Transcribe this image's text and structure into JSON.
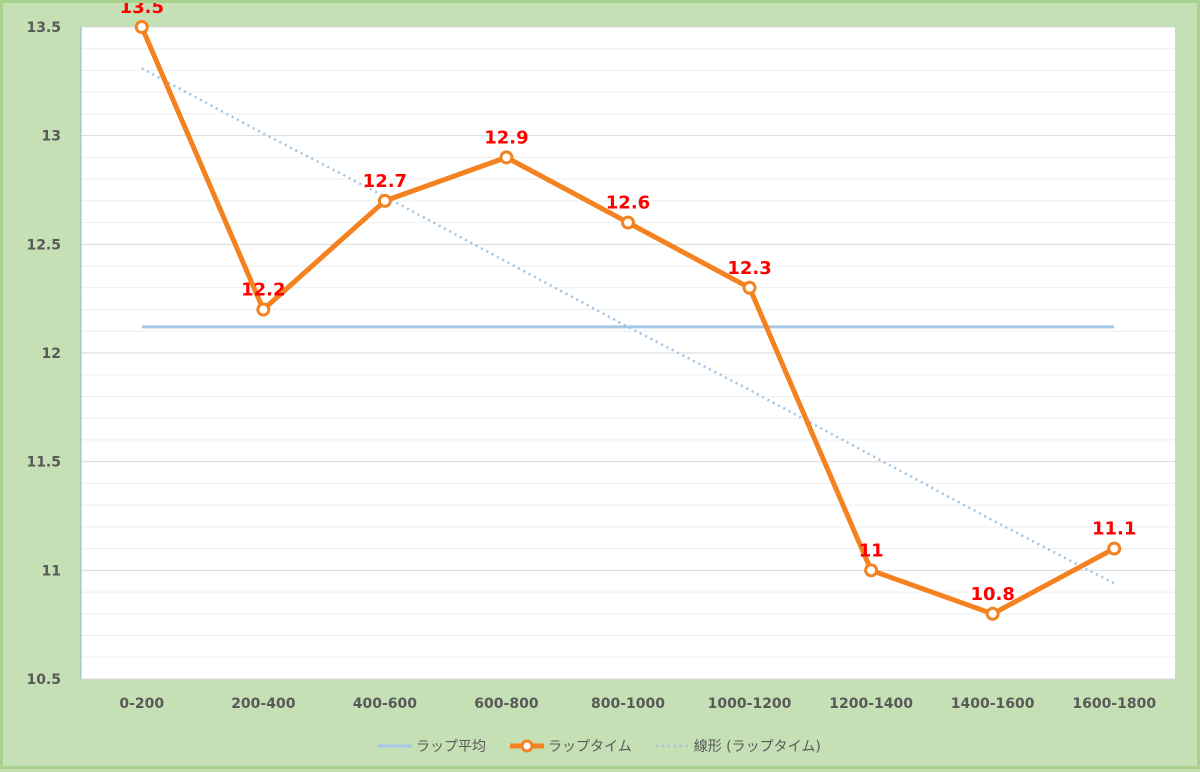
{
  "chart_data": {
    "type": "line",
    "categories": [
      "0-200",
      "200-400",
      "400-600",
      "600-800",
      "800-1000",
      "1000-1200",
      "1200-1400",
      "1400-1600",
      "1600-1800"
    ],
    "series": [
      {
        "name": "ラップタイム",
        "values": [
          13.5,
          12.2,
          12.7,
          12.9,
          12.6,
          12.3,
          11.0,
          10.8,
          11.1
        ],
        "data_labels": [
          "13.5",
          "12.2",
          "12.7",
          "12.9",
          "12.6",
          "12.3",
          "11",
          "10.8",
          "11.1"
        ],
        "color": "#f58220",
        "marker": "circle-hollow"
      },
      {
        "name": "ラップ平均",
        "values": [
          12.12,
          12.12,
          12.12,
          12.12,
          12.12,
          12.12,
          12.12,
          12.12,
          12.12
        ],
        "color": "#a7c7e7"
      },
      {
        "name": "線形 (ラップタイム)",
        "trendline": true,
        "values": [
          13.31,
          13.01,
          12.72,
          12.42,
          12.12,
          11.83,
          11.53,
          11.23,
          10.94
        ],
        "color": "#9dc3e6",
        "style": "dotted"
      }
    ],
    "ylim": [
      10.5,
      13.5
    ],
    "yticks": [
      "10.5",
      "11",
      "11.5",
      "12",
      "12.5",
      "13",
      "13.5"
    ],
    "minor_grid_step": 0.1,
    "grid": true,
    "legend": "bottom",
    "legend_order": [
      "ラップ平均",
      "ラップタイム",
      "線形 (ラップタイム)"
    ],
    "title": "",
    "xlabel": "",
    "ylabel": ""
  },
  "colors": {
    "background": "#c5e0b4",
    "frame": "#a9d18e",
    "plot_bg": "#ffffff",
    "data_label": "#ff0000",
    "tick_label": "#595959",
    "grid": "#d9d9d9",
    "minor_grid": "#eeeeee",
    "axis": "#8eb4e3"
  }
}
